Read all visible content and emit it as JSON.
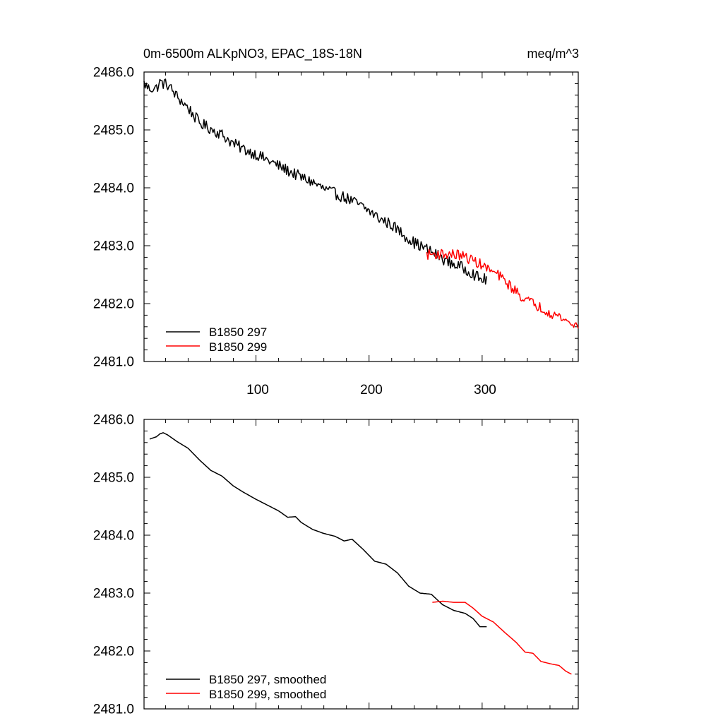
{
  "chart_data": [
    {
      "type": "line",
      "title": "0m-6500m ALKpNO3, EPAC_18S-18N",
      "units": "meq/m^3",
      "xlabel": "",
      "ylabel": "",
      "xlim": [
        1,
        385
      ],
      "ylim": [
        2481.0,
        2486.0
      ],
      "yticks": [
        "2486.0",
        "2485.0",
        "2484.0",
        "2483.0",
        "2482.0",
        "2481.0"
      ],
      "xticks": [
        "100",
        "200",
        "300"
      ],
      "legend_position": "bottom-left",
      "series": [
        {
          "name": "B1850 297",
          "color": "#000000",
          "x_start": 1,
          "x_end": 304,
          "anchors": [
            [
              1,
              2485.8
            ],
            [
              5,
              2485.72
            ],
            [
              12,
              2485.72
            ],
            [
              15,
              2485.82
            ],
            [
              22,
              2485.78
            ],
            [
              30,
              2485.58
            ],
            [
              40,
              2485.38
            ],
            [
              50,
              2485.12
            ],
            [
              60,
              2485.02
            ],
            [
              70,
              2484.92
            ],
            [
              80,
              2484.76
            ],
            [
              90,
              2484.66
            ],
            [
              100,
              2484.58
            ],
            [
              110,
              2484.48
            ],
            [
              120,
              2484.38
            ],
            [
              128,
              2484.3
            ],
            [
              140,
              2484.18
            ],
            [
              150,
              2484.1
            ],
            [
              160,
              2483.98
            ],
            [
              170,
              2483.9
            ],
            [
              180,
              2483.82
            ],
            [
              190,
              2483.72
            ],
            [
              200,
              2483.6
            ],
            [
              210,
              2483.46
            ],
            [
              220,
              2483.36
            ],
            [
              230,
              2483.2
            ],
            [
              240,
              2483.05
            ],
            [
              250,
              2482.95
            ],
            [
              260,
              2482.84
            ],
            [
              270,
              2482.72
            ],
            [
              280,
              2482.64
            ],
            [
              290,
              2482.55
            ],
            [
              298,
              2482.42
            ],
            [
              304,
              2482.42
            ]
          ],
          "noise": 0.1
        },
        {
          "name": "B1850 299",
          "color": "#ff0000",
          "x_start": 251,
          "x_end": 385,
          "anchors": [
            [
              251,
              2482.85
            ],
            [
              260,
              2482.86
            ],
            [
              270,
              2482.85
            ],
            [
              280,
              2482.84
            ],
            [
              288,
              2482.78
            ],
            [
              295,
              2482.72
            ],
            [
              305,
              2482.6
            ],
            [
              315,
              2482.48
            ],
            [
              325,
              2482.3
            ],
            [
              335,
              2482.12
            ],
            [
              345,
              2482.0
            ],
            [
              355,
              2481.9
            ],
            [
              365,
              2481.8
            ],
            [
              372,
              2481.74
            ],
            [
              378,
              2481.65
            ],
            [
              385,
              2481.62
            ]
          ],
          "noise": 0.09
        }
      ]
    },
    {
      "type": "line",
      "title": "",
      "xlim": [
        1,
        385
      ],
      "ylim": [
        2481.0,
        2486.0
      ],
      "yticks": [
        "2486.0",
        "2485.0",
        "2484.0",
        "2483.0",
        "2482.0",
        "2481.0"
      ],
      "legend_position": "bottom-left",
      "series": [
        {
          "name": "B1850 297, smoothed",
          "color": "#000000",
          "x_start": 6,
          "x_end": 304,
          "anchors": [
            [
              6,
              2485.66
            ],
            [
              12,
              2485.7
            ],
            [
              15,
              2485.75
            ],
            [
              18,
              2485.77
            ],
            [
              22,
              2485.73
            ],
            [
              30,
              2485.62
            ],
            [
              40,
              2485.5
            ],
            [
              50,
              2485.3
            ],
            [
              60,
              2485.12
            ],
            [
              70,
              2485.02
            ],
            [
              80,
              2484.85
            ],
            [
              90,
              2484.73
            ],
            [
              100,
              2484.62
            ],
            [
              110,
              2484.52
            ],
            [
              120,
              2484.42
            ],
            [
              128,
              2484.31
            ],
            [
              135,
              2484.32
            ],
            [
              140,
              2484.22
            ],
            [
              150,
              2484.1
            ],
            [
              160,
              2484.03
            ],
            [
              170,
              2483.98
            ],
            [
              178,
              2483.9
            ],
            [
              185,
              2483.93
            ],
            [
              195,
              2483.75
            ],
            [
              205,
              2483.55
            ],
            [
              215,
              2483.5
            ],
            [
              225,
              2483.35
            ],
            [
              235,
              2483.12
            ],
            [
              245,
              2483.0
            ],
            [
              255,
              2482.98
            ],
            [
              265,
              2482.8
            ],
            [
              275,
              2482.7
            ],
            [
              285,
              2482.65
            ],
            [
              292,
              2482.56
            ],
            [
              298,
              2482.42
            ],
            [
              304,
              2482.42
            ]
          ]
        },
        {
          "name": "B1850 299, smoothed",
          "color": "#ff0000",
          "x_start": 256,
          "x_end": 379,
          "anchors": [
            [
              256,
              2482.84
            ],
            [
              265,
              2482.86
            ],
            [
              275,
              2482.84
            ],
            [
              285,
              2482.84
            ],
            [
              292,
              2482.74
            ],
            [
              300,
              2482.6
            ],
            [
              310,
              2482.5
            ],
            [
              320,
              2482.32
            ],
            [
              330,
              2482.15
            ],
            [
              338,
              2481.98
            ],
            [
              345,
              2481.96
            ],
            [
              352,
              2481.82
            ],
            [
              360,
              2481.78
            ],
            [
              368,
              2481.75
            ],
            [
              374,
              2481.65
            ],
            [
              379,
              2481.6
            ]
          ]
        }
      ]
    }
  ]
}
